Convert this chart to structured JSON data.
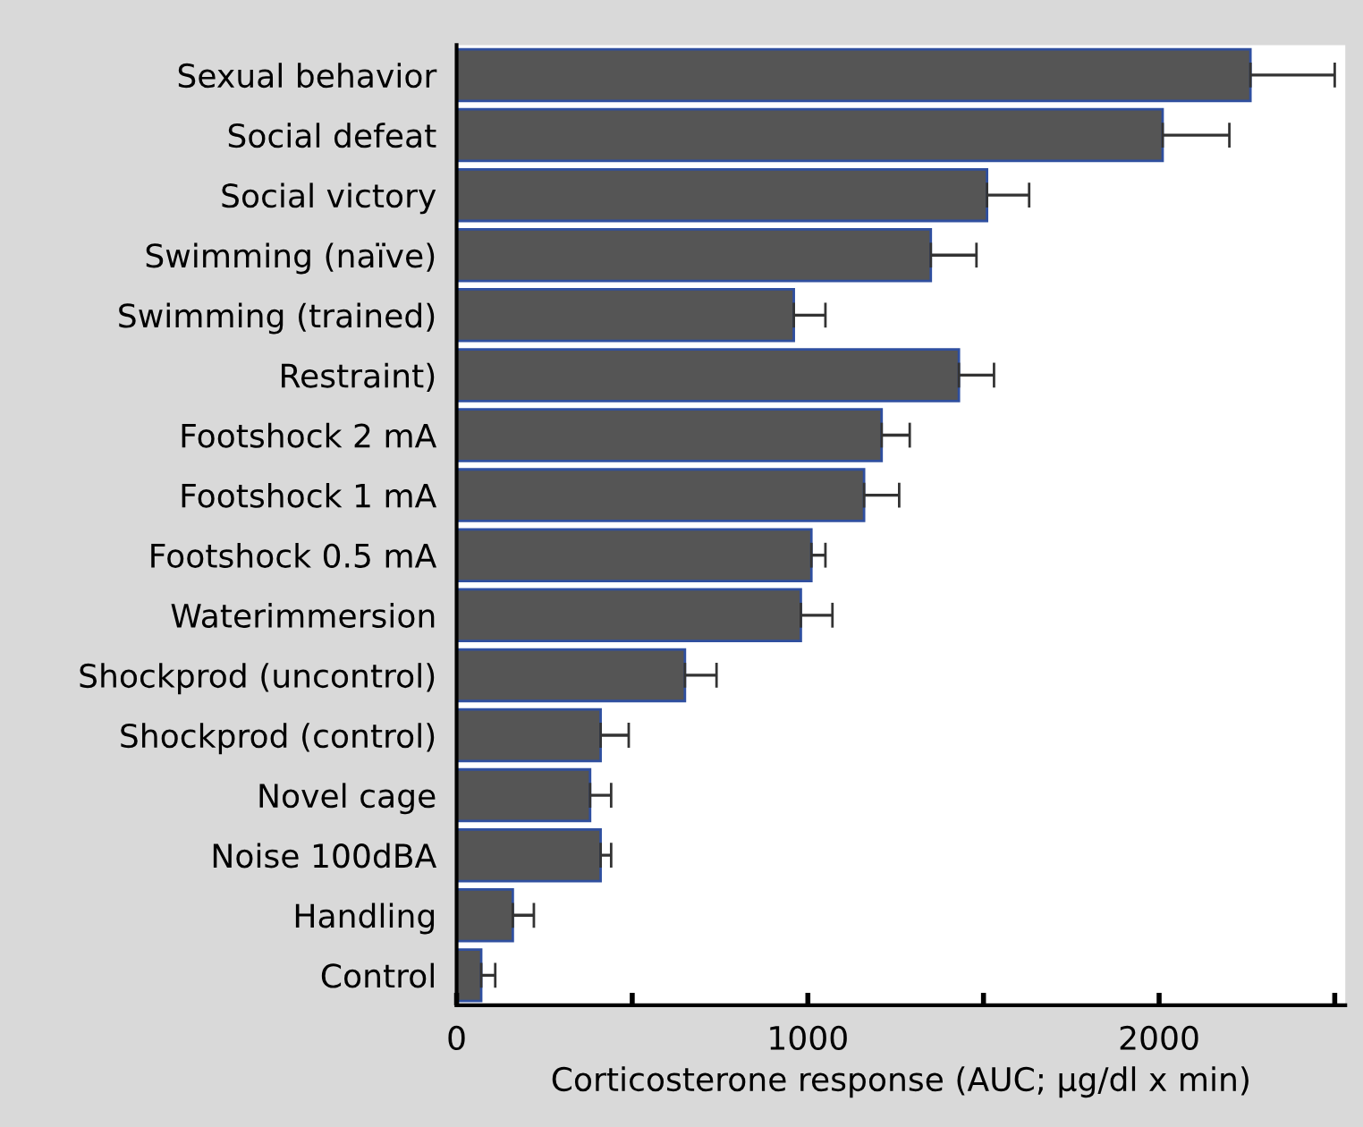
{
  "chart_data": {
    "type": "bar",
    "orientation": "horizontal",
    "xlabel": "Corticosterone response (AUC; μg/dl x min)",
    "categories": [
      "Sexual behavior",
      "Social defeat",
      "Social victory",
      "Swimming (naïve)",
      "Swimming (trained)",
      "Restraint)",
      "Footshock 2 mA",
      "Footshock 1 mA",
      "Footshock 0.5 mA",
      "Waterimmersion",
      "Shockprod (uncontrol)",
      "Shockprod (control)",
      "Novel cage",
      "Noise 100dBA",
      "Handling",
      "Control"
    ],
    "values": [
      2260,
      2010,
      1510,
      1350,
      960,
      1430,
      1210,
      1160,
      1010,
      980,
      650,
      410,
      380,
      410,
      160,
      70
    ],
    "errors": [
      [
        2260,
        2500
      ],
      [
        2010,
        2200
      ],
      [
        1510,
        1630
      ],
      [
        1350,
        1480
      ],
      [
        960,
        1050
      ],
      [
        1430,
        1530
      ],
      [
        1210,
        1290
      ],
      [
        1160,
        1260
      ],
      [
        1010,
        1050
      ],
      [
        980,
        1070
      ],
      [
        650,
        740
      ],
      [
        410,
        490
      ],
      [
        380,
        440
      ],
      [
        410,
        440
      ],
      [
        160,
        220
      ],
      [
        70,
        110
      ]
    ],
    "color": "#555555",
    "xlim": [
      0,
      2530
    ],
    "xticks": [
      0,
      {
        "value": 500,
        "label": null
      },
      1000,
      {
        "value": 1500,
        "label": null
      },
      2000,
      {
        "value": 2500,
        "label": null
      }
    ],
    "grid": false,
    "legend": false
  }
}
